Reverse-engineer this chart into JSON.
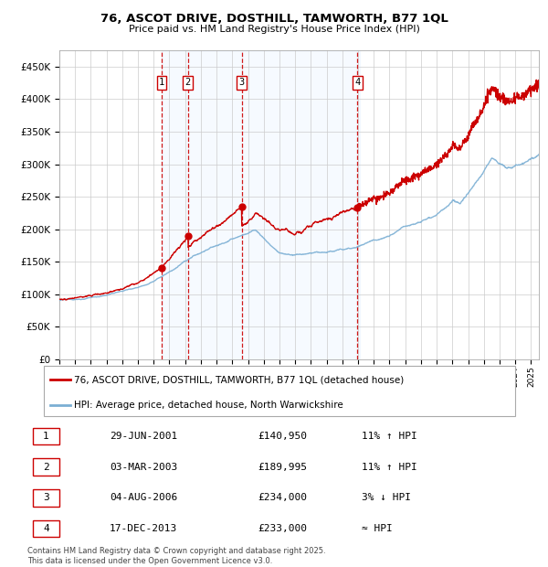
{
  "title": "76, ASCOT DRIVE, DOSTHILL, TAMWORTH, B77 1QL",
  "subtitle": "Price paid vs. HM Land Registry's House Price Index (HPI)",
  "legend_line1": "76, ASCOT DRIVE, DOSTHILL, TAMWORTH, B77 1QL (detached house)",
  "legend_line2": "HPI: Average price, detached house, North Warwickshire",
  "footer1": "Contains HM Land Registry data © Crown copyright and database right 2025.",
  "footer2": "This data is licensed under the Open Government Licence v3.0.",
  "sale_labels": [
    {
      "num": "1",
      "date": "29-JUN-2001",
      "price": "£140,950",
      "change": "11% ↑ HPI"
    },
    {
      "num": "2",
      "date": "03-MAR-2003",
      "price": "£189,995",
      "change": "11% ↑ HPI"
    },
    {
      "num": "3",
      "date": "04-AUG-2006",
      "price": "£234,000",
      "change": "3% ↓ HPI"
    },
    {
      "num": "4",
      "date": "17-DEC-2013",
      "price": "£233,000",
      "change": "≈ HPI"
    }
  ],
  "sale_years": [
    2001.49,
    2003.17,
    2006.59,
    2013.96
  ],
  "sale_prices": [
    140950,
    189995,
    234000,
    233000
  ],
  "hpi_color": "#7BAFD4",
  "price_color": "#CC0000",
  "sale_marker_color": "#CC0000",
  "vline_color": "#CC0000",
  "shade_color": "#DDEEFF",
  "background_color": "#ffffff",
  "grid_color": "#cccccc",
  "ylim": [
    0,
    475000
  ],
  "yticks": [
    0,
    50000,
    100000,
    150000,
    200000,
    250000,
    300000,
    350000,
    400000,
    450000
  ],
  "xlim_start": 1995.0,
  "xlim_end": 2025.5
}
